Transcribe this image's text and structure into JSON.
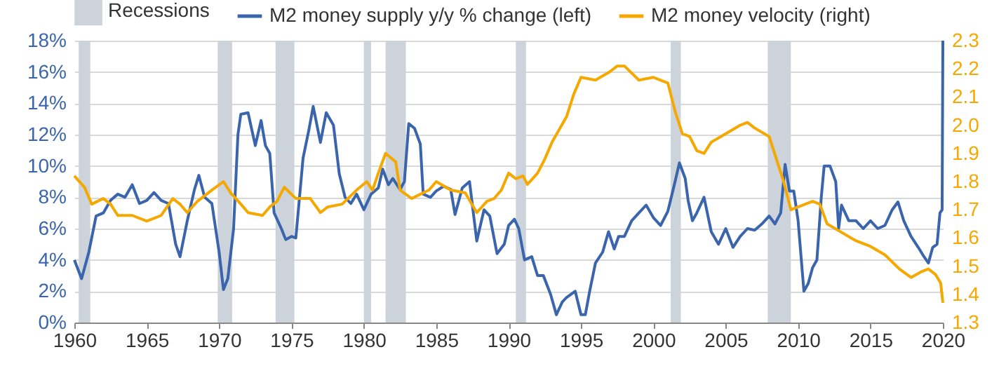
{
  "chart_data": {
    "type": "line",
    "legend": "top",
    "grid": "y",
    "xlim": [
      1960,
      2020
    ],
    "xticks": [
      1960,
      1965,
      1970,
      1975,
      1980,
      1985,
      1990,
      1995,
      2000,
      2005,
      2010,
      2015,
      2020
    ],
    "ylim": [
      0,
      18
    ],
    "yticks": [
      {
        "value": 0,
        "label": "0%"
      },
      {
        "value": 2,
        "label": "2%"
      },
      {
        "value": 4,
        "label": "4%"
      },
      {
        "value": 6,
        "label": "6%"
      },
      {
        "value": 8,
        "label": "8%"
      },
      {
        "value": 10,
        "label": "10%"
      },
      {
        "value": 12,
        "label": "12%"
      },
      {
        "value": 14,
        "label": "14%"
      },
      {
        "value": 16,
        "label": "16%"
      },
      {
        "value": 18,
        "label": "18%"
      }
    ],
    "y2lim": [
      1.3,
      2.3
    ],
    "y2ticks": [
      {
        "value": 1.3,
        "label": "1.3"
      },
      {
        "value": 1.4,
        "label": "1.4"
      },
      {
        "value": 1.5,
        "label": "1.5"
      },
      {
        "value": 1.6,
        "label": "1.6"
      },
      {
        "value": 1.7,
        "label": "1.7"
      },
      {
        "value": 1.8,
        "label": "1.8"
      },
      {
        "value": 1.9,
        "label": "1.9"
      },
      {
        "value": 2,
        "label": "2.0"
      },
      {
        "value": 2.1,
        "label": "2.1"
      },
      {
        "value": 2.2,
        "label": "2.2"
      },
      {
        "value": 2.3,
        "label": "2.3"
      }
    ],
    "bands": [
      {
        "axis": "x",
        "from": 1960.3,
        "to": 1961.1,
        "label": "Recessions",
        "color": "#cdd3da"
      },
      {
        "axis": "x",
        "from": 1969.9,
        "to": 1970.9,
        "color": "#cdd3da"
      },
      {
        "axis": "x",
        "from": 1973.9,
        "to": 1975.2,
        "color": "#cdd3da"
      },
      {
        "axis": "x",
        "from": 1980.0,
        "to": 1980.5,
        "color": "#cdd3da"
      },
      {
        "axis": "x",
        "from": 1981.5,
        "to": 1982.9,
        "color": "#cdd3da"
      },
      {
        "axis": "x",
        "from": 1990.5,
        "to": 1991.2,
        "color": "#cdd3da"
      },
      {
        "axis": "x",
        "from": 2001.2,
        "to": 2001.9,
        "color": "#cdd3da"
      },
      {
        "axis": "x",
        "from": 2007.9,
        "to": 2009.5,
        "color": "#cdd3da"
      }
    ],
    "series": [
      {
        "name": "M2 money supply y/y % change (left)",
        "color": "#3a65ad",
        "x": [
          1960,
          1960.5,
          1961,
          1961.5,
          1962,
          1962.5,
          1963,
          1963.5,
          1964,
          1964.5,
          1965,
          1965.5,
          1966,
          1966.5,
          1967,
          1967.3,
          1967.8,
          1968.3,
          1968.6,
          1969,
          1969.5,
          1970,
          1970.3,
          1970.6,
          1971,
          1971.3,
          1971.5,
          1972,
          1972.5,
          1972.9,
          1973.2,
          1973.5,
          1973.8,
          1974.3,
          1974.6,
          1975,
          1975.3,
          1975.8,
          1976.2,
          1976.5,
          1977,
          1977.4,
          1977.9,
          1978.3,
          1978.7,
          1979.1,
          1979.5,
          1980,
          1980.5,
          1981,
          1981.3,
          1981.7,
          1982,
          1982.5,
          1982.8,
          1983.1,
          1983.5,
          1983.9,
          1984.1,
          1984.6,
          1985,
          1985.5,
          1986,
          1986.3,
          1986.8,
          1987.3,
          1987.8,
          1988.3,
          1988.7,
          1989.2,
          1989.7,
          1990,
          1990.4,
          1990.7,
          1991.1,
          1991.6,
          1992,
          1992.4,
          1992.9,
          1993.3,
          1993.7,
          1994,
          1994.6,
          1995,
          1995.3,
          1995.6,
          1996,
          1996.5,
          1996.9,
          1997.3,
          1997.6,
          1998,
          1998.5,
          1999,
          1999.5,
          2000,
          2000.5,
          2001,
          2001.5,
          2001.8,
          2002.2,
          2002.4,
          2002.7,
          2003,
          2003.5,
          2004,
          2004.5,
          2005,
          2005.5,
          2006,
          2006.5,
          2007,
          2007.5,
          2008,
          2008.4,
          2008.8,
          2009.1,
          2009.4,
          2009.7,
          2010,
          2010.4,
          2010.7,
          2011,
          2011.3,
          2011.6,
          2011.8,
          2012.2,
          2012.6,
          2012.8,
          2013,
          2013.5,
          2014,
          2014.5,
          2015,
          2015.5,
          2016,
          2016.5,
          2016.9,
          2017.3,
          2017.8,
          2018.3,
          2018.7,
          2019,
          2019.3,
          2019.6,
          2019.8,
          2019.95,
          2020
        ],
        "values": [
          4.0,
          2.8,
          4.5,
          6.8,
          7.0,
          7.8,
          8.2,
          8.0,
          8.8,
          7.6,
          7.8,
          8.3,
          7.8,
          7.6,
          5.0,
          4.2,
          6.5,
          8.5,
          9.4,
          8.0,
          7.6,
          4.5,
          2.1,
          2.8,
          6.0,
          12.0,
          13.3,
          13.4,
          11.3,
          12.9,
          11.3,
          10.8,
          7.0,
          6.0,
          5.3,
          5.5,
          5.4,
          10.5,
          12.3,
          13.8,
          11.5,
          13.4,
          12.6,
          9.5,
          8.0,
          7.6,
          8.2,
          7.2,
          8.2,
          8.6,
          9.8,
          8.8,
          9.2,
          8.5,
          9.0,
          12.7,
          12.4,
          11.4,
          8.2,
          8.0,
          8.4,
          8.7,
          8.5,
          6.9,
          8.6,
          9.0,
          5.2,
          7.2,
          6.8,
          4.4,
          5.0,
          6.2,
          6.6,
          6.0,
          4.0,
          4.2,
          3.0,
          3.0,
          1.8,
          0.5,
          1.3,
          1.6,
          2.0,
          0.5,
          0.5,
          2.0,
          3.8,
          4.5,
          5.8,
          4.7,
          5.5,
          5.5,
          6.5,
          7.0,
          7.5,
          6.7,
          6.2,
          7.1,
          9.0,
          10.2,
          9.2,
          7.8,
          6.5,
          7.0,
          8.0,
          5.8,
          5.0,
          6.0,
          4.8,
          5.5,
          6.0,
          5.9,
          6.3,
          6.8,
          6.3,
          7.0,
          10.1,
          8.4,
          8.4,
          6.5,
          2.0,
          2.5,
          3.5,
          4.0,
          8.0,
          10.0,
          10.0,
          9.0,
          6.0,
          7.5,
          6.5,
          6.5,
          6.0,
          6.5,
          6.0,
          6.2,
          7.2,
          7.7,
          6.5,
          5.5,
          4.8,
          4.2,
          3.8,
          4.8,
          5.0,
          7.0,
          7.2,
          18.0
        ]
      },
      {
        "name": "M2 money velocity (right)",
        "color": "#f5a800",
        "axis": "y2",
        "x": [
          1960,
          1960.7,
          1961.2,
          1962,
          1962.5,
          1963,
          1964,
          1965,
          1966,
          1966.8,
          1967.3,
          1967.8,
          1968.5,
          1969.5,
          1970.3,
          1970.8,
          1971.5,
          1972,
          1973,
          1973.5,
          1974,
          1974.5,
          1975.3,
          1976.3,
          1977,
          1977.5,
          1978.5,
          1979.5,
          1980.2,
          1980.6,
          1981,
          1981.5,
          1982.2,
          1982.5,
          1983.3,
          1984.5,
          1985,
          1986,
          1987,
          1987.8,
          1988.5,
          1989,
          1989.5,
          1990,
          1990.5,
          1991,
          1991.3,
          1992,
          1992.5,
          1993,
          1994,
          1994.5,
          1995,
          1996,
          1997,
          1997.5,
          1998,
          1999,
          2000,
          2000.5,
          2001,
          2001.5,
          2002,
          2002.5,
          2003,
          2003.5,
          2004,
          2005,
          2006,
          2006.5,
          2007,
          2008,
          2008.5,
          2009,
          2009.5,
          2010,
          2011,
          2011.5,
          2012,
          2013,
          2014,
          2015,
          2016,
          2017,
          2017.8,
          2018.5,
          2019,
          2019.5,
          2019.85,
          2020
        ],
        "values": [
          1.82,
          1.78,
          1.72,
          1.74,
          1.72,
          1.68,
          1.68,
          1.66,
          1.68,
          1.74,
          1.72,
          1.69,
          1.73,
          1.77,
          1.8,
          1.76,
          1.72,
          1.69,
          1.68,
          1.71,
          1.73,
          1.78,
          1.74,
          1.74,
          1.69,
          1.71,
          1.72,
          1.77,
          1.8,
          1.77,
          1.83,
          1.9,
          1.87,
          1.77,
          1.74,
          1.77,
          1.8,
          1.77,
          1.76,
          1.69,
          1.73,
          1.74,
          1.77,
          1.83,
          1.81,
          1.82,
          1.79,
          1.83,
          1.88,
          1.94,
          2.03,
          2.11,
          2.17,
          2.16,
          2.19,
          2.21,
          2.21,
          2.16,
          2.17,
          2.16,
          2.15,
          2.05,
          1.97,
          1.96,
          1.91,
          1.9,
          1.94,
          1.97,
          2.0,
          2.01,
          1.99,
          1.96,
          1.88,
          1.8,
          1.7,
          1.71,
          1.73,
          1.72,
          1.65,
          1.62,
          1.59,
          1.57,
          1.54,
          1.49,
          1.46,
          1.48,
          1.49,
          1.47,
          1.44,
          1.37
        ]
      }
    ]
  }
}
